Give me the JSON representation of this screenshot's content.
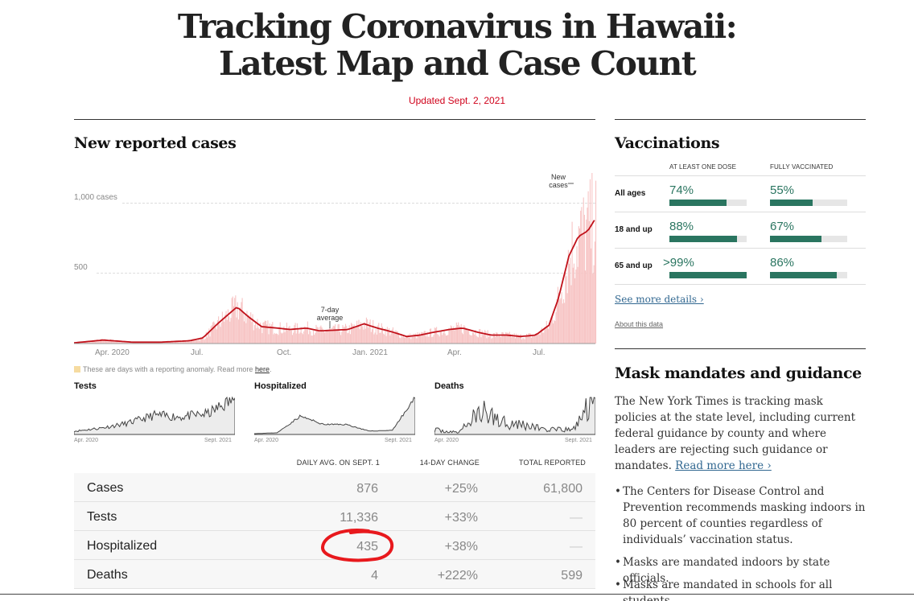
{
  "header": {
    "title_line1": "Tracking Coronavirus in Hawaii:",
    "title_line2": "Latest Map and Case Count",
    "updated": "Updated Sept. 2, 2021"
  },
  "cases_section": {
    "heading": "New reported cases",
    "annotation_new_cases": [
      "New",
      "cases"
    ],
    "annotation_avg": [
      "7-day",
      "average"
    ],
    "anomaly_note": "These are days with a reporting anomaly. Read more ",
    "anomaly_link": "here",
    "anomaly_end": ".",
    "colors": {
      "bars": "#f7c4c4",
      "line": "#c1111a",
      "anomaly": "#f6dba0"
    }
  },
  "chart_data": [
    {
      "type": "line",
      "title": "New reported cases",
      "x_ticks": [
        "Apr. 2020",
        "Jul.",
        "Oct.",
        "Jan. 2021",
        "Apr.",
        "Jul."
      ],
      "y_ticks": [
        "1,000 cases",
        "500"
      ],
      "ylim": [
        0,
        1000
      ],
      "series": [
        {
          "name": "7-day average",
          "x": [
            "2020-03-01",
            "2020-04-01",
            "2020-05-01",
            "2020-06-01",
            "2020-07-01",
            "2020-07-15",
            "2020-08-01",
            "2020-08-20",
            "2020-09-01",
            "2020-09-15",
            "2020-10-01",
            "2020-10-15",
            "2020-11-01",
            "2020-11-15",
            "2020-12-01",
            "2020-12-15",
            "2021-01-01",
            "2021-01-15",
            "2021-02-01",
            "2021-02-15",
            "2021-03-01",
            "2021-03-15",
            "2021-04-01",
            "2021-04-15",
            "2021-05-01",
            "2021-05-15",
            "2021-06-01",
            "2021-06-15",
            "2021-07-01",
            "2021-07-15",
            "2021-07-25",
            "2021-08-05",
            "2021-08-15",
            "2021-08-25",
            "2021-09-01"
          ],
          "values": [
            5,
            25,
            10,
            10,
            20,
            40,
            150,
            260,
            190,
            120,
            110,
            100,
            110,
            90,
            95,
            100,
            140,
            110,
            80,
            50,
            60,
            80,
            100,
            110,
            80,
            60,
            60,
            50,
            60,
            130,
            320,
            620,
            760,
            800,
            876
          ]
        }
      ]
    },
    {
      "type": "line",
      "title": "Tests",
      "x_ticks": [
        "Apr. 2020",
        "Sept. 2021"
      ],
      "series": [
        {
          "x": [
            "2020-04",
            "2020-07",
            "2020-10",
            "2021-01",
            "2021-04",
            "2021-07",
            "2021-09"
          ],
          "values": [
            1000,
            2000,
            3500,
            6000,
            5500,
            6500,
            11336
          ]
        }
      ]
    },
    {
      "type": "line",
      "title": "Hospitalized",
      "x_ticks": [
        "Apr. 2020",
        "Sept. 2021"
      ],
      "series": [
        {
          "x": [
            "2020-04",
            "2020-07",
            "2020-09",
            "2020-11",
            "2021-01",
            "2021-04",
            "2021-07",
            "2021-09"
          ],
          "values": [
            10,
            20,
            220,
            120,
            120,
            40,
            50,
            435
          ]
        }
      ]
    },
    {
      "type": "line",
      "title": "Deaths",
      "x_ticks": [
        "Apr. 2020",
        "Sept. 2021"
      ],
      "series": [
        {
          "x": [
            "2020-04",
            "2020-07",
            "2020-09",
            "2020-11",
            "2021-01",
            "2021-04",
            "2021-07",
            "2021-09"
          ],
          "values": [
            0.5,
            0.2,
            2.5,
            1.5,
            1,
            0.5,
            0.5,
            4
          ]
        }
      ]
    }
  ],
  "table": {
    "headers": [
      "DAILY AVG. ON SEPT. 1",
      "14-DAY CHANGE",
      "TOTAL REPORTED"
    ],
    "rows": [
      {
        "label": "Cases",
        "daily": "876",
        "change": "+25%",
        "total": "61,800"
      },
      {
        "label": "Tests",
        "daily": "11,336",
        "change": "+33%",
        "total": "—"
      },
      {
        "label": "Hospitalized",
        "daily": "435",
        "change": "+38%",
        "total": "—"
      },
      {
        "label": "Deaths",
        "daily": "4",
        "change": "+222%",
        "total": "599"
      }
    ]
  },
  "vaccinations": {
    "heading": "Vaccinations",
    "col1": "AT LEAST ONE DOSE",
    "col2": "FULLY VACCINATED",
    "rows": [
      {
        "age": "All ages",
        "one_dose": "74%",
        "one_dose_fill": 0.74,
        "full": "55%",
        "full_fill": 0.55
      },
      {
        "age": "18 and up",
        "one_dose": "88%",
        "one_dose_fill": 0.88,
        "full": "67%",
        "full_fill": 0.67
      },
      {
        "age": "65 and up",
        "one_dose": ">99%",
        "one_dose_fill": 1.0,
        "full": "86%",
        "full_fill": 0.86
      }
    ],
    "see_more": "See more details ›",
    "about": "About this data"
  },
  "masks": {
    "heading": "Mask mandates and guidance",
    "intro": "The New York Times is tracking mask policies at the state level, including current federal guidance by county and where leaders are rejecting such guidance or mandates. ",
    "read_more": "Read more here ›",
    "bullets": [
      "The Centers for Disease Control and Prevention recommends masking indoors in 80 percent of counties regardless of individuals’ vaccination status.",
      "Masks are mandated indoors by state officials.",
      "Masks are mandated in schools for all students"
    ]
  }
}
